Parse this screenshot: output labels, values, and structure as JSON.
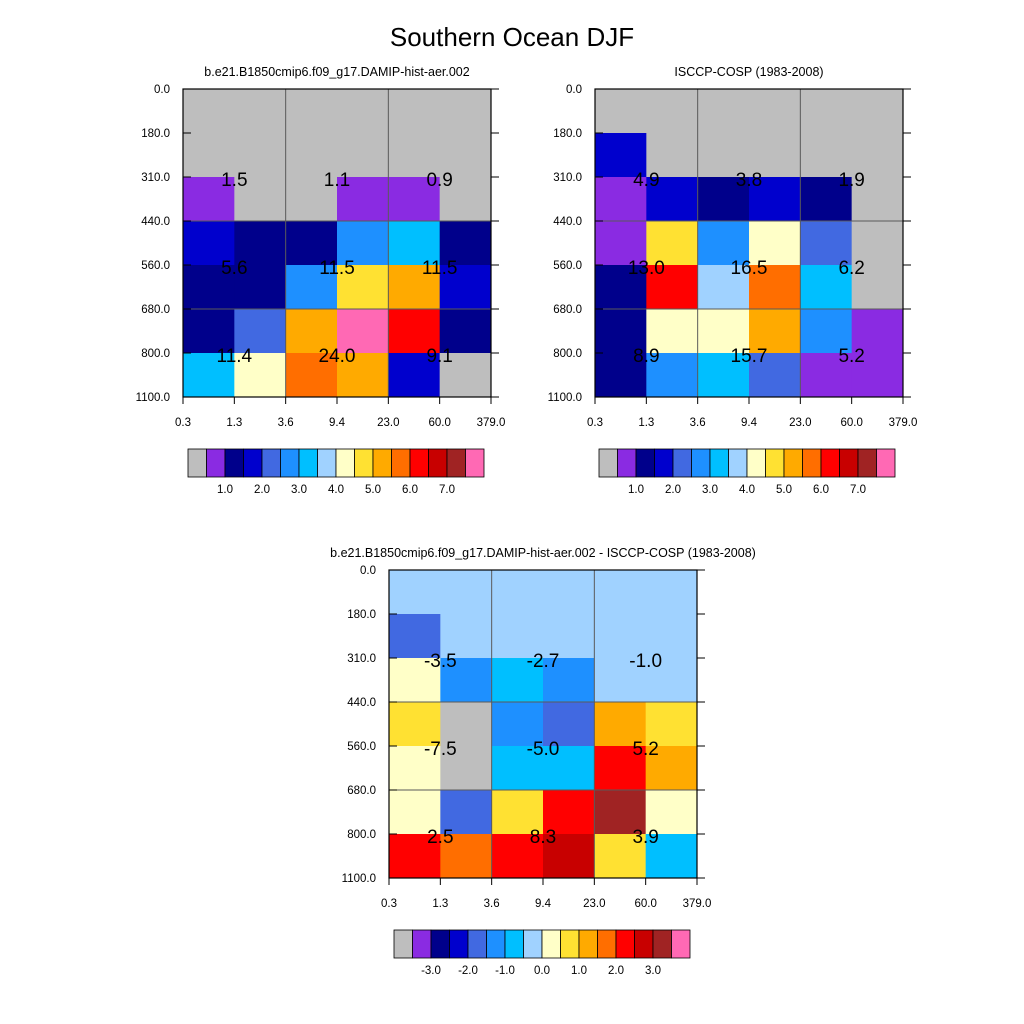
{
  "figure": {
    "title": "Southern Ocean DJF"
  },
  "colors": {
    "levels": [
      "#bebebe",
      "#8a2be2",
      "#00008b",
      "#0000cd",
      "#4169e1",
      "#1e90ff",
      "#00bfff",
      "#a0d2ff",
      "#ffffc8",
      "#ffe132",
      "#ffaa00",
      "#ff6e00",
      "#ff0000",
      "#c80000",
      "#a02323",
      "#ff69b4"
    ],
    "grid": "#5a5a5a",
    "axis": "#000000"
  },
  "chart_data": [
    {
      "type": "heatmap",
      "title": "b.e21.B1850cmip6.f09_g17.DAMIP-hist-aer.002",
      "x_ticks": [
        "0.3",
        "1.3",
        "3.6",
        "9.4",
        "23.0",
        "60.0",
        "379.0"
      ],
      "y_ticks": [
        "0.0",
        "180.0",
        "310.0",
        "440.0",
        "560.0",
        "680.0",
        "800.0",
        "1100.0"
      ],
      "cells_color_index": [
        [
          0,
          0,
          0,
          0,
          0,
          0
        ],
        [
          0,
          0,
          0,
          0,
          0,
          0
        ],
        [
          1,
          0,
          0,
          1,
          1,
          0
        ],
        [
          3,
          2,
          2,
          5,
          6,
          2
        ],
        [
          2,
          2,
          5,
          9,
          10,
          3
        ],
        [
          2,
          4,
          10,
          15,
          12,
          2
        ],
        [
          6,
          8,
          11,
          10,
          3,
          0
        ]
      ],
      "annotations": [
        {
          "x": 1,
          "y": 2,
          "text": "1.5"
        },
        {
          "x": 3,
          "y": 2,
          "text": "1.1"
        },
        {
          "x": 5,
          "y": 2,
          "text": "0.9"
        },
        {
          "x": 1,
          "y": 4,
          "text": "5.6"
        },
        {
          "x": 3,
          "y": 4,
          "text": "11.5"
        },
        {
          "x": 5,
          "y": 4,
          "text": "11.5"
        },
        {
          "x": 1,
          "y": 6,
          "text": "11.4"
        },
        {
          "x": 3,
          "y": 6,
          "text": "24.0"
        },
        {
          "x": 5,
          "y": 6,
          "text": "9.1"
        }
      ],
      "colorbar_labels": [
        "1.0",
        "2.0",
        "3.0",
        "4.0",
        "5.0",
        "6.0",
        "7.0"
      ]
    },
    {
      "type": "heatmap",
      "title": "ISCCP-COSP (1983-2008)",
      "x_ticks": [
        "0.3",
        "1.3",
        "3.6",
        "9.4",
        "23.0",
        "60.0",
        "379.0"
      ],
      "y_ticks": [
        "0.0",
        "180.0",
        "310.0",
        "440.0",
        "560.0",
        "680.0",
        "800.0",
        "1100.0"
      ],
      "cells_color_index": [
        [
          0,
          0,
          0,
          0,
          0,
          0
        ],
        [
          3,
          0,
          0,
          0,
          0,
          0
        ],
        [
          1,
          3,
          2,
          3,
          2,
          0
        ],
        [
          1,
          9,
          5,
          8,
          4,
          0
        ],
        [
          2,
          12,
          7,
          11,
          6,
          0
        ],
        [
          2,
          8,
          8,
          10,
          5,
          1
        ],
        [
          2,
          5,
          6,
          4,
          1,
          1
        ]
      ],
      "annotations": [
        {
          "x": 1,
          "y": 2,
          "text": "4.9"
        },
        {
          "x": 3,
          "y": 2,
          "text": "3.8"
        },
        {
          "x": 5,
          "y": 2,
          "text": "1.9"
        },
        {
          "x": 1,
          "y": 4,
          "text": "13.0"
        },
        {
          "x": 3,
          "y": 4,
          "text": "16.5"
        },
        {
          "x": 5,
          "y": 4,
          "text": "6.2"
        },
        {
          "x": 1,
          "y": 6,
          "text": "8.9"
        },
        {
          "x": 3,
          "y": 6,
          "text": "15.7"
        },
        {
          "x": 5,
          "y": 6,
          "text": "5.2"
        }
      ],
      "colorbar_labels": [
        "1.0",
        "2.0",
        "3.0",
        "4.0",
        "5.0",
        "6.0",
        "7.0"
      ]
    },
    {
      "type": "heatmap",
      "title": "b.e21.B1850cmip6.f09_g17.DAMIP-hist-aer.002 - ISCCP-COSP (1983-2008)",
      "x_ticks": [
        "0.3",
        "1.3",
        "3.6",
        "9.4",
        "23.0",
        "60.0",
        "379.0"
      ],
      "y_ticks": [
        "0.0",
        "180.0",
        "310.0",
        "440.0",
        "560.0",
        "680.0",
        "800.0",
        "1100.0"
      ],
      "cells_color_index": [
        [
          7,
          7,
          7,
          7,
          7,
          7
        ],
        [
          4,
          7,
          7,
          7,
          7,
          7
        ],
        [
          8,
          5,
          6,
          5,
          7,
          7
        ],
        [
          9,
          0,
          5,
          4,
          10,
          9
        ],
        [
          8,
          0,
          6,
          6,
          12,
          10
        ],
        [
          8,
          4,
          9,
          12,
          14,
          8
        ],
        [
          12,
          11,
          12,
          13,
          9,
          6
        ]
      ],
      "annotations": [
        {
          "x": 1,
          "y": 2,
          "text": "-3.5"
        },
        {
          "x": 3,
          "y": 2,
          "text": "-2.7"
        },
        {
          "x": 5,
          "y": 2,
          "text": "-1.0"
        },
        {
          "x": 1,
          "y": 4,
          "text": "-7.5"
        },
        {
          "x": 3,
          "y": 4,
          "text": "-5.0"
        },
        {
          "x": 5,
          "y": 4,
          "text": "5.2"
        },
        {
          "x": 1,
          "y": 6,
          "text": "2.5"
        },
        {
          "x": 3,
          "y": 6,
          "text": "8.3"
        },
        {
          "x": 5,
          "y": 6,
          "text": "3.9"
        }
      ],
      "colorbar_labels": [
        "-3.0",
        "-2.0",
        "-1.0",
        "0.0",
        "1.0",
        "2.0",
        "3.0"
      ]
    }
  ]
}
